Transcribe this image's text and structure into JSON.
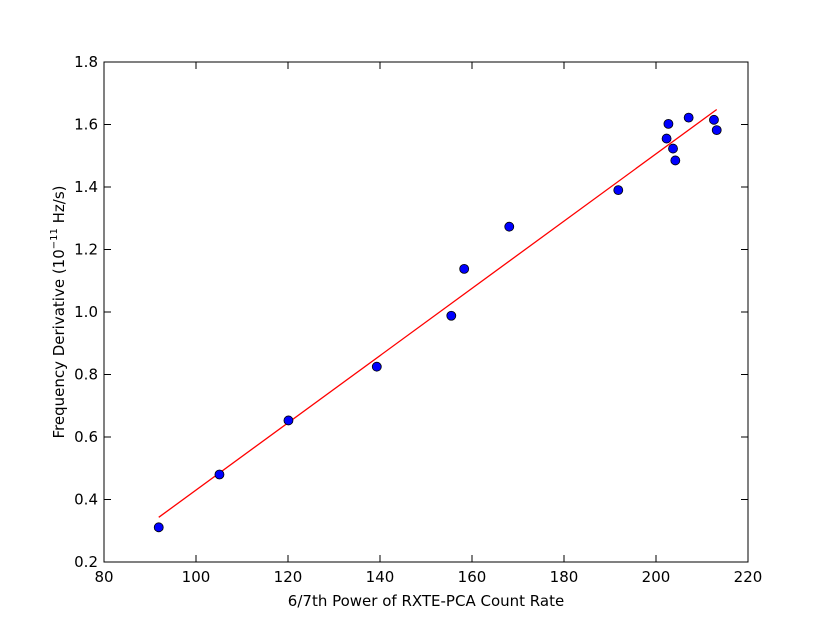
{
  "chart_data": {
    "type": "scatter",
    "title": "",
    "xlabel": "6/7th Power of RXTE-PCA Count Rate",
    "ylabel": {
      "prefix": "Frequency Derivative (",
      "base": "10",
      "exponent": "−11",
      "suffix": " Hz/s)"
    },
    "xlim": [
      80,
      220
    ],
    "ylim": [
      0.2,
      1.8
    ],
    "xticks": [
      80,
      100,
      120,
      140,
      160,
      180,
      200,
      220
    ],
    "yticks": [
      0.2,
      0.4,
      0.6,
      0.8,
      1.0,
      1.2,
      1.4,
      1.6,
      1.8
    ],
    "xtick_labels": [
      "80",
      "100",
      "120",
      "140",
      "160",
      "180",
      "200",
      "220"
    ],
    "ytick_labels": [
      "0.2",
      "0.4",
      "0.6",
      "0.8",
      "1.0",
      "1.2",
      "1.4",
      "1.6",
      "1.8"
    ],
    "grid": false,
    "series": [
      {
        "kind": "points",
        "color": "#0000ff",
        "points": [
          [
            91.9,
            0.311
          ],
          [
            105.1,
            0.48
          ],
          [
            120.1,
            0.653
          ],
          [
            139.3,
            0.825
          ],
          [
            155.5,
            0.988
          ],
          [
            158.3,
            1.138
          ],
          [
            168.1,
            1.273
          ],
          [
            191.8,
            1.39
          ],
          [
            202.3,
            1.555
          ],
          [
            202.7,
            1.602
          ],
          [
            203.7,
            1.523
          ],
          [
            204.2,
            1.485
          ],
          [
            207.1,
            1.622
          ],
          [
            212.6,
            1.615
          ],
          [
            213.2,
            1.582
          ]
        ]
      },
      {
        "kind": "fit-line",
        "color": "#ff0000",
        "points": [
          [
            91.9,
            0.343
          ],
          [
            213.2,
            1.648
          ]
        ]
      }
    ]
  }
}
